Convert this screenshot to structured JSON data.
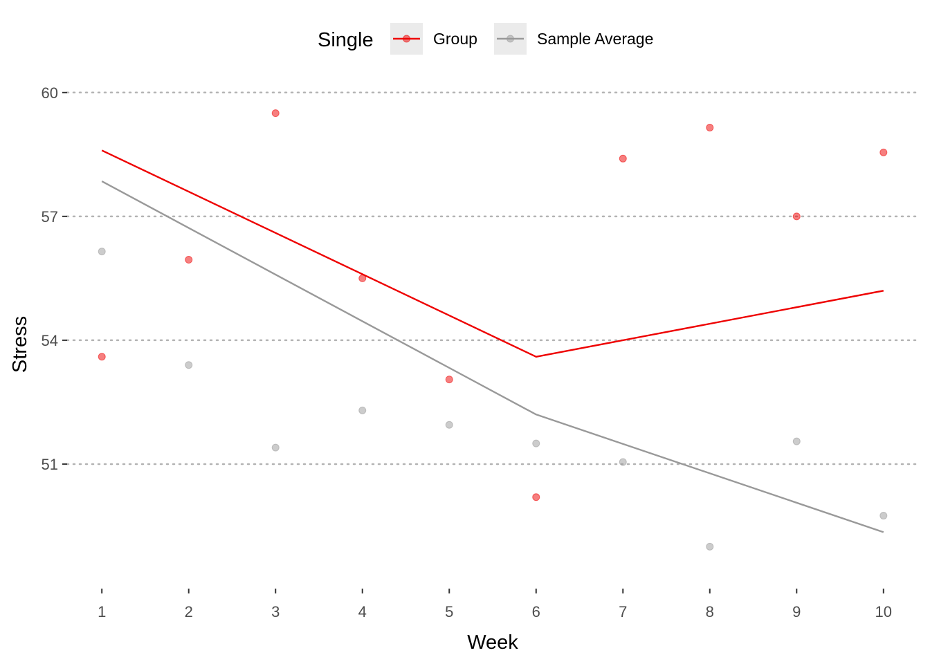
{
  "chart_data": {
    "type": "line",
    "xlabel": "Week",
    "ylabel": "Stress",
    "xlim": [
      0.6,
      10.4
    ],
    "ylim": [
      48.0,
      60.6
    ],
    "x_ticks": [
      1,
      2,
      3,
      4,
      5,
      6,
      7,
      8,
      9,
      10
    ],
    "y_ticks": [
      51,
      54,
      57,
      60
    ],
    "y_grid": "dotted",
    "legend": {
      "title": "Single",
      "position": "top",
      "entries": [
        "Group",
        "Sample Average"
      ]
    },
    "series": [
      {
        "name": "Group",
        "color": "#ee0000",
        "points_x": [
          1,
          2,
          3,
          4,
          5,
          6,
          7,
          8,
          9,
          10
        ],
        "points_y": [
          53.6,
          55.95,
          59.5,
          55.5,
          53.05,
          50.2,
          58.4,
          59.15,
          57.0,
          58.55
        ],
        "line_x": [
          1,
          6,
          10
        ],
        "line_y": [
          58.6,
          53.6,
          55.2
        ]
      },
      {
        "name": "Sample Average",
        "color": "#999999",
        "points_x": [
          1,
          2,
          3,
          4,
          5,
          6,
          7,
          8,
          9,
          10
        ],
        "points_y": [
          56.15,
          53.4,
          51.4,
          52.3,
          51.95,
          51.5,
          51.05,
          49.0,
          51.55,
          49.75
        ],
        "line_x": [
          1,
          6,
          10
        ],
        "line_y": [
          57.85,
          52.2,
          49.35
        ]
      }
    ]
  }
}
